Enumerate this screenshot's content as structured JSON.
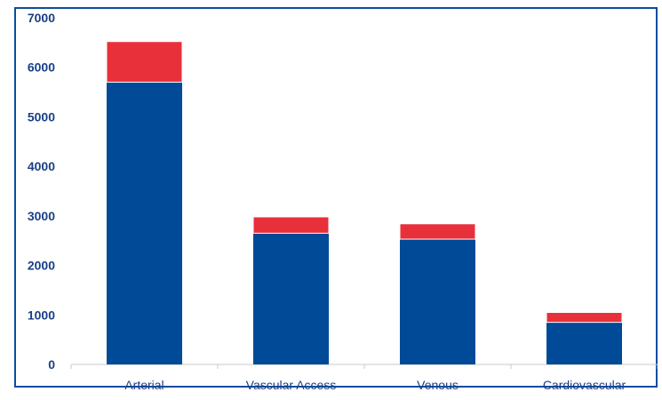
{
  "chart_data": {
    "type": "bar",
    "stacked": true,
    "title": "",
    "xlabel": "",
    "ylabel": "",
    "categories": [
      "Arterial",
      "Vascular Access",
      "Venous",
      "Cardiovascular"
    ],
    "series": [
      {
        "values": [
          5700,
          2650,
          2530,
          850
        ],
        "color": "#004a97"
      },
      {
        "values": [
          820,
          330,
          310,
          200
        ],
        "color": "#e8303a"
      }
    ],
    "ylim": [
      0,
      7000
    ],
    "yticks": [
      0,
      1000,
      2000,
      3000,
      4000,
      5000,
      6000,
      7000
    ],
    "grid": false,
    "legend": "none"
  },
  "colors": {
    "frame_border": "#0a4da0",
    "axis_text": "#1a3f86",
    "axis_line": "#c9c9c9"
  }
}
